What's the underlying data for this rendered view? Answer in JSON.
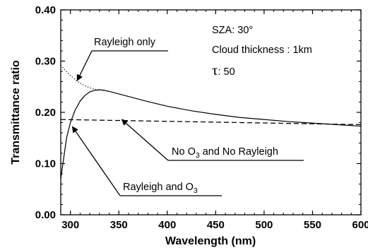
{
  "chart_data": {
    "type": "line",
    "title": "",
    "xlabel": "Wavelength (nm)",
    "ylabel": "Transmittance ratio",
    "xlim": [
      290,
      600
    ],
    "ylim": [
      0.0,
      0.4
    ],
    "x_ticks": [
      "300",
      "350",
      "400",
      "450",
      "500",
      "550",
      "600"
    ],
    "y_ticks": [
      "0.00",
      "0.10",
      "0.20",
      "0.30",
      "0.40"
    ],
    "grid": false,
    "legend": "none",
    "info_box": {
      "sza": "SZA: 30°",
      "cloud": "Cloud thickness : 1km",
      "tau_symbol": "τ",
      "tau_value": ": 50"
    },
    "series": [
      {
        "label": "Rayleigh and O3",
        "style": "solid",
        "x": [
          290,
          293,
          296,
          300,
          305,
          310,
          315,
          320,
          325,
          330,
          335,
          340,
          350,
          360,
          380,
          400,
          425,
          450,
          475,
          500,
          525,
          550,
          575,
          600
        ],
        "y": [
          0.07,
          0.11,
          0.15,
          0.18,
          0.205,
          0.222,
          0.233,
          0.24,
          0.243,
          0.244,
          0.243,
          0.241,
          0.236,
          0.231,
          0.221,
          0.212,
          0.203,
          0.196,
          0.19,
          0.186,
          0.182,
          0.179,
          0.176,
          0.173
        ]
      },
      {
        "label": "Rayleigh only",
        "style": "dotted",
        "x": [
          290,
          295,
          300,
          305,
          310,
          315,
          320,
          325,
          330,
          340
        ],
        "y": [
          0.292,
          0.281,
          0.272,
          0.264,
          0.257,
          0.252,
          0.248,
          0.245,
          0.244,
          0.241
        ]
      },
      {
        "label": "No O3 and No Rayleigh",
        "style": "dashed",
        "x": [
          290,
          600
        ],
        "y": [
          0.186,
          0.176
        ]
      }
    ],
    "annotations": [
      {
        "id": "rayleigh-only",
        "prefix": "Rayleigh only",
        "sub": "",
        "suffix": "",
        "point": [
          307,
          0.262
        ]
      },
      {
        "id": "no-o3",
        "prefix": "No O",
        "sub": "3",
        "suffix": " and No Rayleigh",
        "point": [
          353,
          0.186
        ]
      },
      {
        "id": "rayleigh-o3",
        "prefix": "Rayleigh and O",
        "sub": "3",
        "suffix": "",
        "point": [
          302,
          0.172
        ]
      }
    ]
  }
}
